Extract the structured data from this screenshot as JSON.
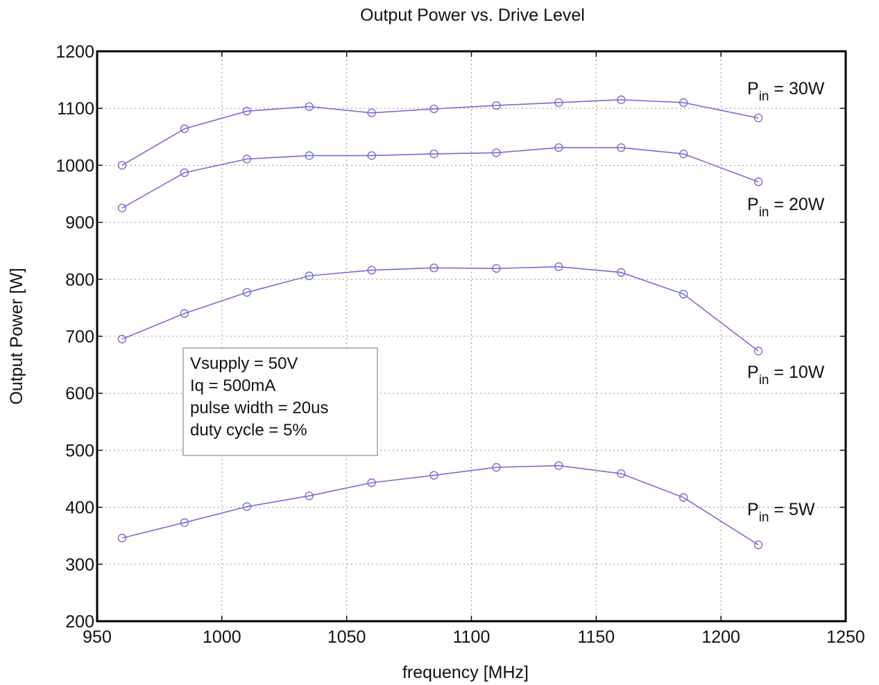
{
  "chart_data": {
    "type": "line",
    "title": "Output Power vs. Drive Level",
    "xlabel": "frequency [MHz]",
    "ylabel": "Output Power [W]",
    "xlim": [
      950,
      1250
    ],
    "ylim": [
      200,
      1200
    ],
    "xticks": [
      950,
      1000,
      1050,
      1100,
      1150,
      1200,
      1250
    ],
    "yticks": [
      200,
      300,
      400,
      500,
      600,
      700,
      800,
      900,
      1000,
      1100,
      1200
    ],
    "grid": true,
    "line_color": "#6f6fd6",
    "x": [
      960,
      985,
      1010,
      1035,
      1060,
      1085,
      1110,
      1135,
      1160,
      1185,
      1215
    ],
    "series": [
      {
        "label_main": "P",
        "label_sub": "in",
        "label_rest": " = 30W",
        "values": [
          1000,
          1064,
          1095,
          1103,
          1092,
          1099,
          1105,
          1110,
          1115,
          1110,
          1083
        ]
      },
      {
        "label_main": "P",
        "label_sub": "in",
        "label_rest": " = 20W",
        "values": [
          925,
          987,
          1011,
          1017,
          1017,
          1020,
          1022,
          1031,
          1031,
          1020,
          971
        ]
      },
      {
        "label_main": "P",
        "label_sub": "in",
        "label_rest": " = 10W",
        "values": [
          695,
          740,
          777,
          806,
          816,
          820,
          819,
          822,
          812,
          774,
          674
        ]
      },
      {
        "label_main": "P",
        "label_sub": "in",
        "label_rest": " = 5W",
        "values": [
          346,
          373,
          401,
          420,
          443,
          456,
          470,
          473,
          459,
          417,
          334
        ]
      }
    ],
    "annotation": [
      "Vsupply = 50V",
      "Iq = 500mA",
      "pulse width = 20us",
      "duty cycle = 5%"
    ]
  }
}
